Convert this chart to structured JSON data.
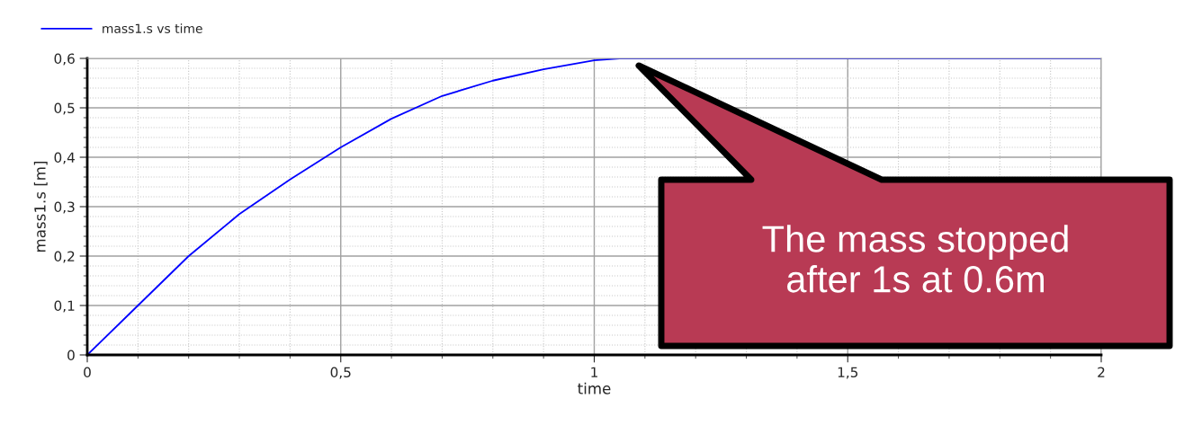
{
  "chart_data": {
    "type": "line",
    "xlabel": "time",
    "ylabel": "mass1.s [m]",
    "x": [
      0,
      0.1,
      0.2,
      0.3,
      0.4,
      0.5,
      0.6,
      0.7,
      0.8,
      0.9,
      1.0,
      1.05,
      2.0
    ],
    "series": [
      {
        "name": "mass1.s vs time",
        "color": "#0000ff",
        "values": [
          0,
          0.1,
          0.2,
          0.285,
          0.355,
          0.42,
          0.478,
          0.524,
          0.555,
          0.578,
          0.596,
          0.6,
          0.6
        ]
      }
    ],
    "xlim": [
      0,
      2
    ],
    "ylim": [
      0,
      0.6
    ],
    "xticks": [
      0,
      {
        "value": 0.5,
        "label": "0,5"
      },
      1,
      {
        "value": 1.5,
        "label": "1,5"
      },
      2
    ],
    "yticks": [
      0,
      {
        "value": 0.1,
        "label": "0,1"
      },
      {
        "value": 0.2,
        "label": "0,2"
      },
      {
        "value": 0.3,
        "label": "0,3"
      },
      {
        "value": 0.4,
        "label": "0,4"
      },
      {
        "value": 0.5,
        "label": "0,5"
      },
      {
        "value": 0.6,
        "label": "0,6"
      }
    ],
    "grid": true,
    "legend": "top left",
    "line_style": "solid",
    "marker": "none",
    "annotations": [
      "The mass stopped\nafter 1s at 0.6m"
    ]
  }
}
